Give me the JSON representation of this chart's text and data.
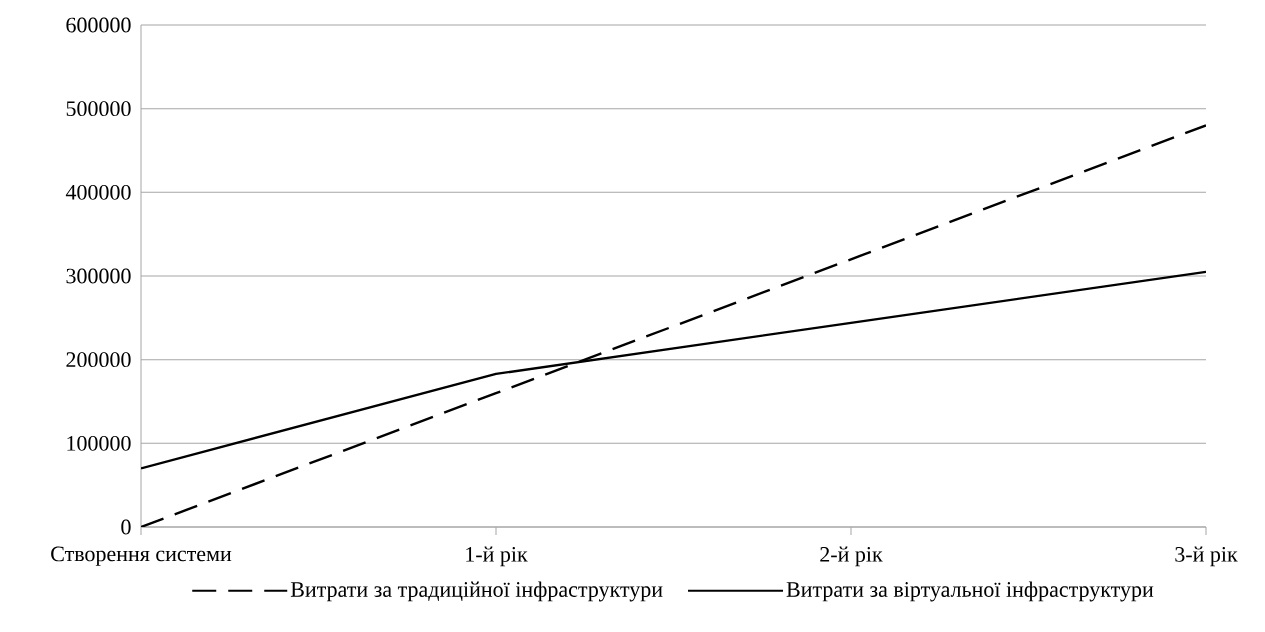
{
  "chart_data": {
    "type": "line",
    "categories": [
      "Створення системи",
      "1-й рік",
      "2-й рік",
      "3-й рік"
    ],
    "series": [
      {
        "name": "Витрати за традиційної інфраструктури",
        "color": "#000000",
        "line_style": "dashed",
        "values": [
          0,
          160000,
          320000,
          480000
        ]
      },
      {
        "name": "Витрати за віртуальної інфраструктури",
        "color": "#000000",
        "line_style": "solid",
        "values": [
          70000,
          183000,
          244000,
          305000
        ]
      }
    ],
    "ylim": [
      0,
      600000
    ],
    "yticks": [
      0,
      100000,
      200000,
      300000,
      400000,
      500000,
      600000
    ],
    "grid": "y",
    "legend": "bottom",
    "marker": "none"
  }
}
